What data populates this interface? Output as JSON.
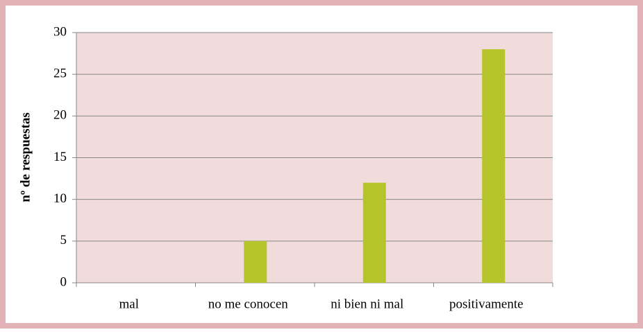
{
  "chart_data": {
    "type": "bar",
    "y_label": "nº de respuestas",
    "categories": [
      "mal",
      "no me conocen",
      "ni bien ni mal",
      "positivamente"
    ],
    "values": [
      0,
      5,
      12,
      28
    ],
    "color": "#b5c42a",
    "ylim": [
      0,
      30
    ],
    "yticks": [
      0,
      5,
      10,
      15,
      20,
      25,
      30
    ],
    "grid": true
  }
}
